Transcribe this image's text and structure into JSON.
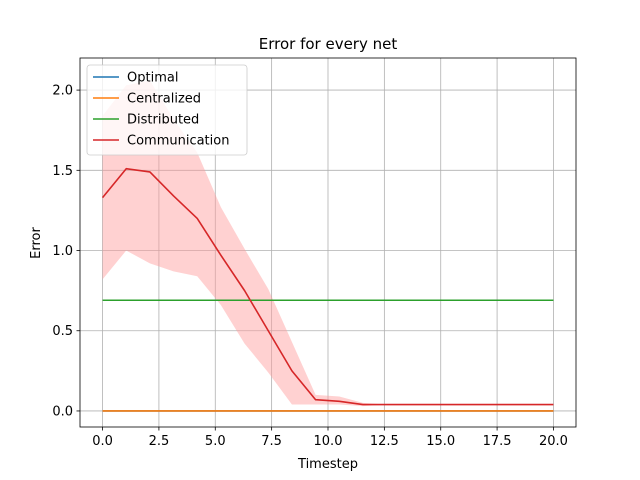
{
  "chart_data": {
    "type": "line",
    "title": "Error for every net",
    "xlabel": "Timestep",
    "ylabel": "Error",
    "xlim": [
      -1,
      21
    ],
    "ylim": [
      -0.1,
      2.2
    ],
    "xticks": [
      0.0,
      2.5,
      5.0,
      7.5,
      10.0,
      12.5,
      15.0,
      17.5,
      20.0
    ],
    "xtick_labels": [
      "0.0",
      "2.5",
      "5.0",
      "7.5",
      "10.0",
      "12.5",
      "15.0",
      "17.5",
      "20.0"
    ],
    "yticks": [
      0.0,
      0.5,
      1.0,
      1.5,
      2.0
    ],
    "ytick_labels": [
      "0.0",
      "0.5",
      "1.0",
      "1.5",
      "2.0"
    ],
    "grid": true,
    "legend_position": "top-left",
    "series": [
      {
        "name": "Optimal",
        "color": "#1f77b4",
        "x": [
          0,
          20
        ],
        "y": [
          0.0,
          0.0
        ]
      },
      {
        "name": "Centralized",
        "color": "#ff7f0e",
        "x": [
          0,
          20
        ],
        "y": [
          0.0,
          0.0
        ]
      },
      {
        "name": "Distributed",
        "color": "#2ca02c",
        "x": [
          0,
          20
        ],
        "y": [
          0.69,
          0.69
        ]
      },
      {
        "name": "Communication",
        "color": "#d62728",
        "band_color": "#ff9999",
        "x": [
          0,
          1.05,
          2.1,
          3.15,
          4.2,
          5.25,
          6.3,
          7.35,
          8.4,
          9.45,
          10.5,
          11.55,
          12.6,
          13.65,
          14.7,
          15.75,
          16.8,
          17.85,
          18.9,
          20
        ],
        "y": [
          1.33,
          1.51,
          1.49,
          1.34,
          1.2,
          0.97,
          0.75,
          0.5,
          0.25,
          0.07,
          0.06,
          0.04,
          0.04,
          0.04,
          0.04,
          0.04,
          0.04,
          0.04,
          0.04,
          0.04
        ],
        "lower": [
          0.82,
          1.0,
          0.92,
          0.87,
          0.84,
          0.66,
          0.42,
          0.24,
          0.04,
          0.04,
          0.04,
          0.03,
          0.04,
          0.04,
          0.04,
          0.04,
          0.04,
          0.04,
          0.04,
          0.04
        ],
        "upper": [
          1.84,
          2.03,
          2.06,
          1.82,
          1.61,
          1.27,
          1.01,
          0.76,
          0.43,
          0.1,
          0.09,
          0.05,
          0.04,
          0.04,
          0.04,
          0.04,
          0.04,
          0.04,
          0.04,
          0.04
        ]
      }
    ]
  }
}
